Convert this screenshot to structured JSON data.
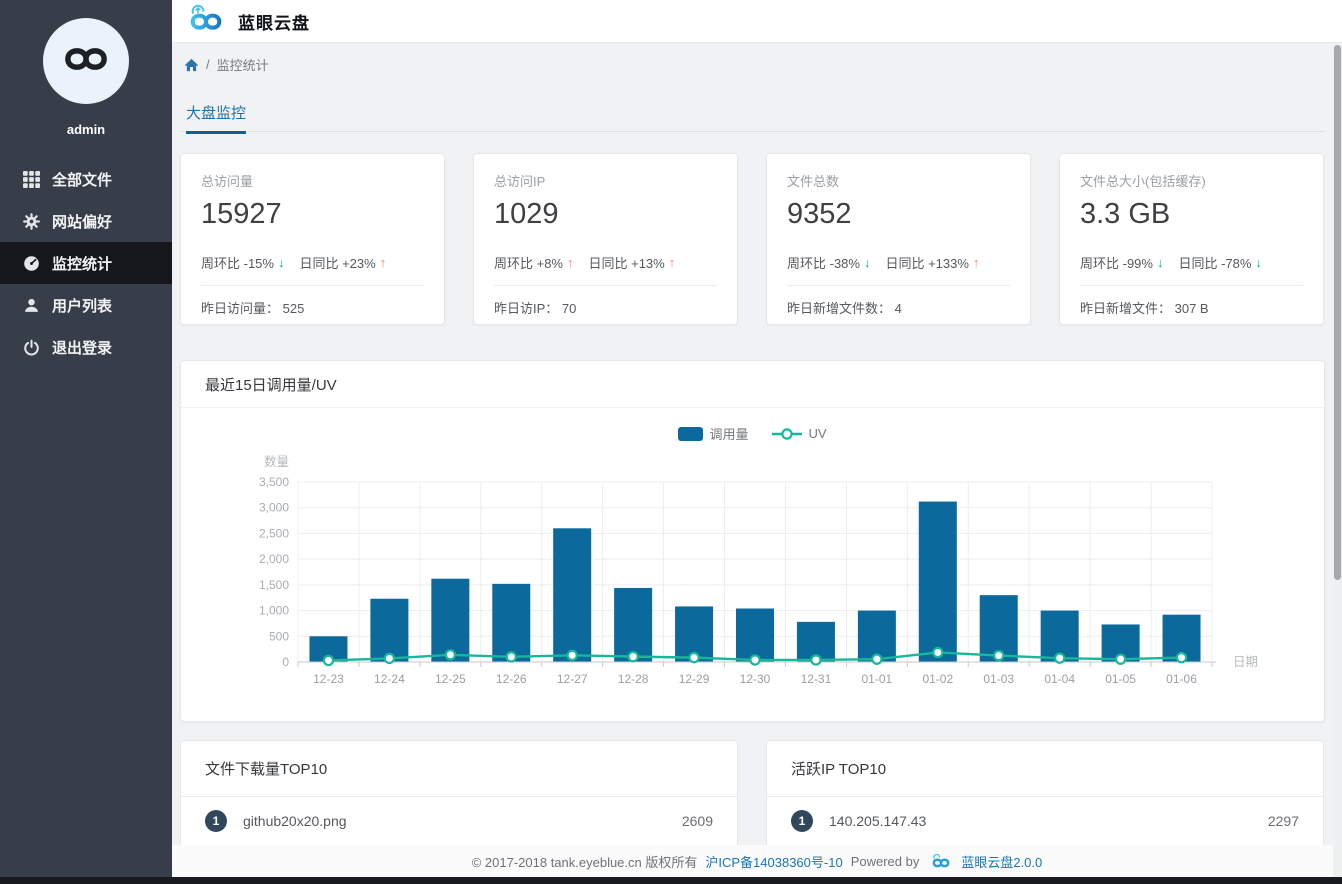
{
  "app": {
    "title": "蓝眼云盘"
  },
  "sidebar": {
    "username": "admin",
    "items": [
      {
        "label": "全部文件",
        "icon": "grid-icon",
        "active": false
      },
      {
        "label": "网站偏好",
        "icon": "gear-icon",
        "active": false
      },
      {
        "label": "监控统计",
        "icon": "dashboard-icon",
        "active": true
      },
      {
        "label": "用户列表",
        "icon": "user-icon",
        "active": false
      },
      {
        "label": "退出登录",
        "icon": "power-icon",
        "active": false
      }
    ]
  },
  "breadcrumb": {
    "separator": "/",
    "current": "监控统计"
  },
  "tab": {
    "label": "大盘监控"
  },
  "stat_cards": [
    {
      "label": "总访问量",
      "value": "15927",
      "week_text": "周环比 -15%",
      "week_dir": "down",
      "day_text": "日同比 +23%",
      "day_dir": "up",
      "footer_text": "昨日访问量： 525"
    },
    {
      "label": "总访问IP",
      "value": "1029",
      "week_text": "周环比 +8%",
      "week_dir": "up",
      "day_text": "日同比 +13%",
      "day_dir": "up",
      "footer_text": "昨日访IP： 70"
    },
    {
      "label": "文件总数",
      "value": "9352",
      "week_text": "周环比 -38%",
      "week_dir": "down",
      "day_text": "日同比 +133%",
      "day_dir": "up",
      "footer_text": "昨日新增文件数： 4"
    },
    {
      "label": "文件总大小(包括缓存)",
      "value": "3.3 GB",
      "week_text": "周环比 -99%",
      "week_dir": "down",
      "day_text": "日同比 -78%",
      "day_dir": "down",
      "footer_text": "昨日新增文件： 307 B"
    }
  ],
  "chart_panel": {
    "title": "最近15日调用量/UV"
  },
  "chart_data": {
    "type": "bar",
    "title": "最近15日调用量/UV",
    "categories": [
      "12-23",
      "12-24",
      "12-25",
      "12-26",
      "12-27",
      "12-28",
      "12-29",
      "12-30",
      "12-31",
      "01-01",
      "01-02",
      "01-03",
      "01-04",
      "01-05",
      "01-06"
    ],
    "series": [
      {
        "name": "调用量",
        "type": "bar",
        "color": "#0b699c",
        "values": [
          500,
          1230,
          1620,
          1520,
          2600,
          1440,
          1080,
          1040,
          780,
          1000,
          3120,
          1300,
          1000,
          730,
          920
        ]
      },
      {
        "name": "UV",
        "type": "line",
        "color": "#17b79a",
        "values": [
          30,
          70,
          140,
          100,
          130,
          105,
          85,
          40,
          40,
          55,
          185,
          125,
          75,
          55,
          85
        ]
      }
    ],
    "xlabel": "日期",
    "ylabel": "数量",
    "ylim": [
      0,
      3500
    ],
    "ytick_labels": [
      "0",
      "500",
      "1,000",
      "1,500",
      "2,000",
      "2,500",
      "3,000",
      "3,500"
    ],
    "grid": true,
    "legend_position": "top-center"
  },
  "top_lists": [
    {
      "title": "文件下载量TOP10",
      "items": [
        {
          "rank": "1",
          "name": "github20x20.png",
          "value": "2609"
        }
      ]
    },
    {
      "title": "活跃IP TOP10",
      "items": [
        {
          "rank": "1",
          "name": "140.205.147.43",
          "value": "2297"
        }
      ]
    }
  ],
  "footer": {
    "copyright": "© 2017-2018 tank.eyeblue.cn 版权所有",
    "icp_link": "沪ICP备14038360号-10",
    "powered_by": "Powered by",
    "product_link": "蓝眼云盘2.0.0"
  },
  "colors": {
    "bar": "#0b699c",
    "line": "#17b79a",
    "arrow_up": "#f4826c",
    "arrow_down": "#00b08d",
    "accent_blue": "#1a73a8",
    "sidebar_bg": "#373d49",
    "sidebar_active": "#15171c",
    "badge": "#31485c"
  }
}
